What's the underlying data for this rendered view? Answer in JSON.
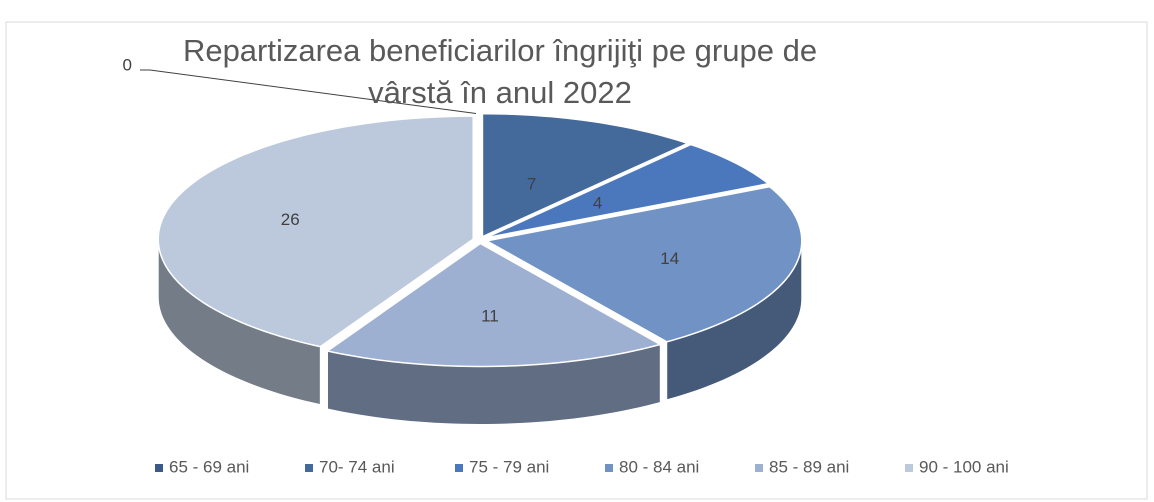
{
  "chart_data": {
    "type": "pie",
    "title": "Repartizarea beneficiarilor  îngrijiţi pe grupe de vârstă în anul 2022",
    "categories": [
      "65 - 69 ani",
      "70- 74 ani",
      "75 - 79 ani",
      "80 - 84 ani",
      "85 - 89 ani",
      "90 - 100 ani"
    ],
    "values": [
      0,
      7,
      4,
      14,
      11,
      26
    ],
    "colors": [
      "#3b5a8b",
      "#44699b",
      "#4b78bd",
      "#7092c4",
      "#9eb0d2",
      "#bcc8dc"
    ],
    "legend": "bottom"
  }
}
